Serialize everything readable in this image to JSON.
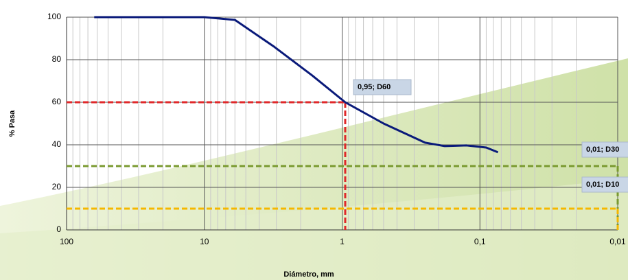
{
  "chart_data": {
    "type": "line",
    "xlabel": "Diámetro, mm",
    "ylabel": "% Pasa",
    "x": [
      63,
      10,
      6,
      3.1,
      1.65,
      0.95,
      0.5,
      0.25,
      0.18,
      0.125,
      0.09,
      0.074
    ],
    "series": [
      {
        "color": "#0a1a7a",
        "values": [
          100,
          100,
          98.7,
          86,
          72.6,
          60,
          50,
          41,
          39.4,
          39.7,
          38.7,
          36.5
        ]
      }
    ],
    "xscale": "log",
    "xlim": [
      100,
      0.01
    ],
    "ylim": [
      0,
      100
    ],
    "xticks": [
      100,
      10,
      1,
      {
        "value": 0.1,
        "label": "0,1"
      },
      {
        "value": 0.01,
        "label": "0,01"
      }
    ],
    "yticks": [
      0,
      20,
      40,
      60,
      80,
      100
    ],
    "grid": true,
    "annotations": [
      {
        "label": "0,95; D60",
        "x": 0.95,
        "y": 60,
        "color": "#e0282a"
      },
      {
        "label": "0,01; D30",
        "x": 0.01,
        "y": 30,
        "color": "#7a9a30"
      },
      {
        "label": "0,01; D10",
        "x": 0.01,
        "y": 10,
        "color": "#f5b800"
      }
    ]
  }
}
